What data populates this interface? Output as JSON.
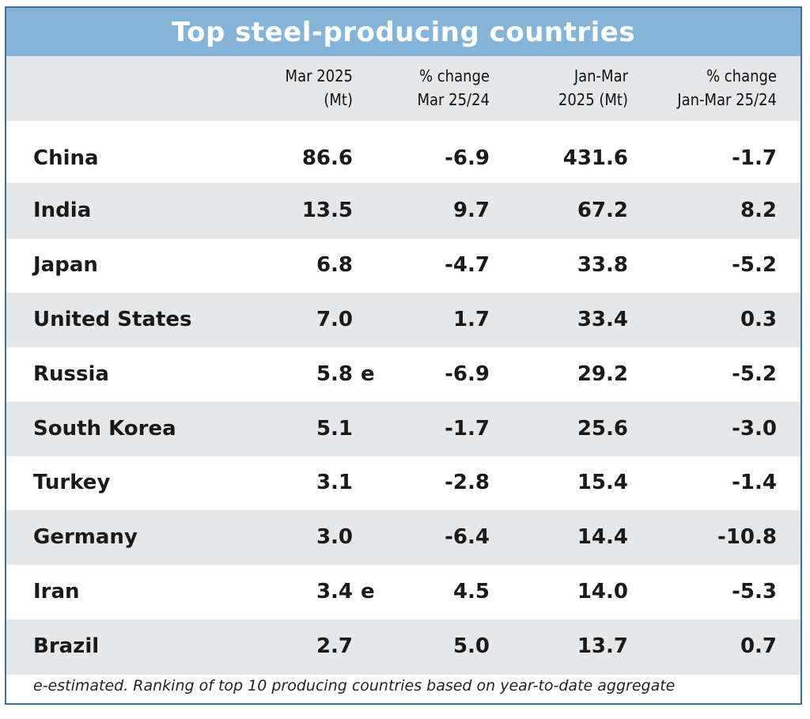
{
  "title": "Top steel-producing countries",
  "chart_data": {
    "type": "table",
    "columns": [
      {
        "line1": "",
        "line2": ""
      },
      {
        "line1": "Mar 2025",
        "line2": "(Mt)"
      },
      {
        "line1": "% change",
        "line2": "Mar 25/24"
      },
      {
        "line1": "Jan-Mar",
        "line2": "2025 (Mt)"
      },
      {
        "line1": "% change",
        "line2": "Jan-Mar 25/24"
      }
    ],
    "rows": [
      {
        "country": "China",
        "mar2025": "86.6",
        "mar_est": "",
        "pct_mar": "-6.9",
        "janmar2025": "431.6",
        "pct_janmar": "-1.7"
      },
      {
        "country": "India",
        "mar2025": "13.5",
        "mar_est": "",
        "pct_mar": "9.7",
        "janmar2025": "67.2",
        "pct_janmar": "8.2"
      },
      {
        "country": "Japan",
        "mar2025": "6.8",
        "mar_est": "",
        "pct_mar": "-4.7",
        "janmar2025": "33.8",
        "pct_janmar": "-5.2"
      },
      {
        "country": "United States",
        "mar2025": "7.0",
        "mar_est": "",
        "pct_mar": "1.7",
        "janmar2025": "33.4",
        "pct_janmar": "0.3"
      },
      {
        "country": "Russia",
        "mar2025": "5.8",
        "mar_est": "e",
        "pct_mar": "-6.9",
        "janmar2025": "29.2",
        "pct_janmar": "-5.2"
      },
      {
        "country": "South Korea",
        "mar2025": "5.1",
        "mar_est": "",
        "pct_mar": "-1.7",
        "janmar2025": "25.6",
        "pct_janmar": "-3.0"
      },
      {
        "country": "Turkey",
        "mar2025": "3.1",
        "mar_est": "",
        "pct_mar": "-2.8",
        "janmar2025": "15.4",
        "pct_janmar": "-1.4"
      },
      {
        "country": "Germany",
        "mar2025": "3.0",
        "mar_est": "",
        "pct_mar": "-6.4",
        "janmar2025": "14.4",
        "pct_janmar": "-10.8"
      },
      {
        "country": "Iran",
        "mar2025": "3.4",
        "mar_est": "e",
        "pct_mar": "4.5",
        "janmar2025": "14.0",
        "pct_janmar": "-5.3"
      },
      {
        "country": "Brazil",
        "mar2025": "2.7",
        "mar_est": "",
        "pct_mar": "5.0",
        "janmar2025": "13.7",
        "pct_janmar": "0.7"
      }
    ],
    "footnote": "e-estimated. Ranking of top 10 producing countries based on year-to-date aggregate"
  },
  "colors": {
    "title_bar": "#86b3d8",
    "title_text": "#ffffff",
    "border": "#3f6f9a",
    "shaded_row": "#e6e7e9"
  }
}
